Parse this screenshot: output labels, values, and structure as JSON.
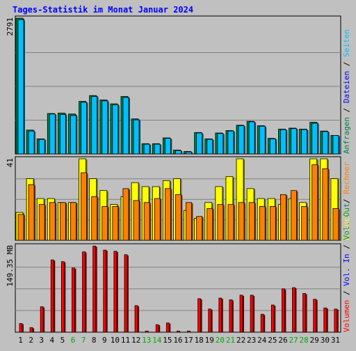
{
  "title": "Tages-Statistik im Monat Januar 2024",
  "colors": {
    "background": "#c0c0c0",
    "title": "#0000ff",
    "hits": "#008040",
    "files": "#00c0ff",
    "pages": "#00e0ff",
    "visits": "#ffff00",
    "sites": "#ff8000",
    "volume": "#ff0000",
    "vol_in": "#0000ff",
    "vol_out": "#008080",
    "weekend_label": "#00aa00",
    "day_label": "#000000"
  },
  "chart_data": [
    {
      "type": "bar",
      "title": "",
      "ylabel_max": "2791",
      "ylim": [
        0,
        2791
      ],
      "legend": [
        {
          "text": "Anfragen",
          "color": "#008040"
        },
        {
          "text": "Dateien",
          "color": "#0000ff"
        },
        {
          "text": "Seiten",
          "color": "#00c0ff"
        }
      ],
      "categories": [
        "1",
        "2",
        "3",
        "4",
        "5",
        "6",
        "7",
        "8",
        "9",
        "10",
        "11",
        "12",
        "13",
        "14",
        "15",
        "16",
        "17",
        "18",
        "19",
        "20",
        "21",
        "22",
        "23",
        "24",
        "25",
        "26",
        "27",
        "28",
        "29",
        "30",
        "31"
      ],
      "series": [
        {
          "name": "Anfragen",
          "values": [
            2791,
            490,
            310,
            830,
            840,
            820,
            1080,
            1200,
            1110,
            1030,
            1180,
            720,
            210,
            210,
            330,
            80,
            50,
            440,
            310,
            430,
            480,
            590,
            670,
            580,
            320,
            510,
            530,
            510,
            650,
            470,
            380
          ]
        },
        {
          "name": "Dateien",
          "values": [
            2760,
            470,
            300,
            820,
            810,
            790,
            1060,
            1180,
            1090,
            1010,
            1160,
            700,
            200,
            200,
            320,
            70,
            40,
            430,
            300,
            420,
            470,
            580,
            660,
            570,
            310,
            500,
            520,
            500,
            630,
            460,
            380
          ]
        }
      ]
    },
    {
      "type": "bar",
      "title": "",
      "ylabel_max": "41",
      "ylim": [
        0,
        41
      ],
      "legend": [
        {
          "text": "Besuche",
          "color": "#ffff00"
        },
        {
          "text": "Rechner",
          "color": "#ff8000"
        }
      ],
      "categories": [
        "1",
        "2",
        "3",
        "4",
        "5",
        "6",
        "7",
        "8",
        "9",
        "10",
        "11",
        "12",
        "13",
        "14",
        "15",
        "16",
        "17",
        "18",
        "19",
        "20",
        "21",
        "22",
        "23",
        "24",
        "25",
        "26",
        "27",
        "28",
        "29",
        "30",
        "31"
      ],
      "series": [
        {
          "name": "Besuche",
          "values": [
            14,
            31,
            21,
            21,
            19,
            19,
            41,
            31,
            25,
            18,
            22,
            29,
            27,
            27,
            30,
            31,
            15,
            11,
            19,
            27,
            32,
            41,
            26,
            21,
            21,
            18,
            21,
            19,
            41,
            41,
            31
          ]
        },
        {
          "name": "Rechner",
          "values": [
            13,
            28,
            18,
            19,
            19,
            19,
            34,
            22,
            17,
            17,
            26,
            20,
            19,
            21,
            26,
            23,
            19,
            12,
            16,
            18,
            18,
            19,
            19,
            17,
            17,
            23,
            25,
            17,
            38,
            36,
            16
          ]
        }
      ]
    },
    {
      "type": "bar",
      "title": "",
      "ylabel_max": "149.35 MB",
      "ylim": [
        0,
        149.35
      ],
      "legend": [
        {
          "text": "Volumen",
          "color": "#ff0000"
        },
        {
          "text": "Vol. In",
          "color": "#0000ff"
        },
        {
          "text": "Vol. Out",
          "color": "#008080"
        }
      ],
      "categories": [
        "1",
        "2",
        "3",
        "4",
        "5",
        "6",
        "7",
        "8",
        "9",
        "10",
        "11",
        "12",
        "13",
        "14",
        "15",
        "16",
        "17",
        "18",
        "19",
        "20",
        "21",
        "22",
        "23",
        "24",
        "25",
        "26",
        "27",
        "28",
        "29",
        "30",
        "31"
      ],
      "series": [
        {
          "name": "Volumen",
          "values": [
            15,
            8,
            44,
            125,
            122,
            111,
            139,
            149,
            142,
            140,
            134,
            46,
            2,
            13,
            16,
            2,
            2,
            58,
            40,
            59,
            56,
            64,
            64,
            31,
            47,
            75,
            77,
            67,
            57,
            42,
            40
          ]
        }
      ]
    }
  ],
  "weekend_days": [
    "6",
    "7",
    "13",
    "14",
    "20",
    "21",
    "27",
    "28"
  ]
}
